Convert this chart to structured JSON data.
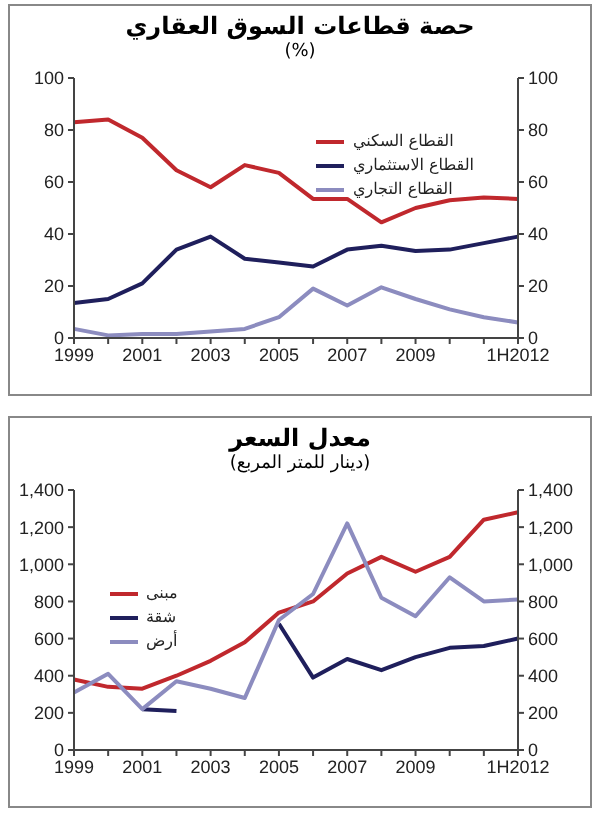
{
  "chart_data": [
    {
      "type": "line",
      "title": "حصة قطاعات السوق العقاري",
      "subtitle": "(%)",
      "categories": [
        "1999",
        null,
        "2001",
        null,
        "2003",
        null,
        "2005",
        null,
        "2007",
        null,
        "2009",
        null,
        null,
        "1H2012"
      ],
      "series": [
        {
          "name": "القطاع السكني",
          "color": "#c0282d",
          "values": [
            83,
            84,
            77,
            64.5,
            58,
            66.5,
            63.5,
            53.5,
            53.5,
            44.5,
            50,
            53,
            54,
            53.5
          ]
        },
        {
          "name": "القطاع الاستثماري",
          "color": "#1f1f5c",
          "values": [
            13.5,
            15,
            21,
            34,
            39,
            30.5,
            29,
            27.5,
            34,
            35.5,
            33.5,
            34,
            36.5,
            39
          ]
        },
        {
          "name": "القطاع التجاري",
          "color": "#8c8cbf",
          "values": [
            3.5,
            1,
            1.5,
            1.5,
            2.5,
            3.5,
            8,
            19,
            12.5,
            19.5,
            15,
            11,
            8,
            6
          ]
        }
      ],
      "ylim": [
        0,
        100
      ],
      "yticks": [
        0,
        20,
        40,
        60,
        80,
        100
      ],
      "y2lim": [
        0,
        100
      ],
      "y2ticks": [
        0,
        20,
        40,
        60,
        80,
        100
      ],
      "grid": false,
      "legend": "top right",
      "marker": "none",
      "line_style": "solid"
    },
    {
      "type": "line",
      "title": "معدل السعر",
      "subtitle": "(دينار للمتر المربع)",
      "categories": [
        "1999",
        null,
        "2001",
        null,
        "2003",
        null,
        "2005",
        null,
        "2007",
        null,
        "2009",
        null,
        null,
        "1H2012"
      ],
      "series": [
        {
          "name": "مبنى",
          "color": "#c0282d",
          "values": [
            380,
            340,
            330,
            400,
            480,
            580,
            740,
            800,
            950,
            1040,
            960,
            1040,
            1240,
            1280
          ]
        },
        {
          "name": "شقة",
          "color": "#1f1f5c",
          "values": [
            null,
            null,
            220,
            210,
            null,
            null,
            680,
            390,
            490,
            430,
            500,
            550,
            560,
            600
          ]
        },
        {
          "name": "أرض",
          "color": "#8c8cbf",
          "values": [
            310,
            410,
            220,
            370,
            330,
            280,
            700,
            840,
            1220,
            820,
            720,
            930,
            800,
            810
          ]
        }
      ],
      "ylim": [
        0,
        1400
      ],
      "yticks": [
        0,
        200,
        400,
        600,
        800,
        {
          "value": 1000,
          "label": "1,000"
        },
        {
          "value": 1200,
          "label": "1,200"
        },
        {
          "value": 1400,
          "label": "1,400"
        }
      ],
      "y2lim": [
        0,
        1400
      ],
      "y2ticks": [
        0,
        200,
        400,
        600,
        800,
        {
          "value": 1000,
          "label": "1,000"
        },
        {
          "value": 1200,
          "label": "1,200"
        },
        {
          "value": 1400,
          "label": "1,400"
        }
      ],
      "grid": false,
      "legend": "top left",
      "marker": "none",
      "line_style": "solid"
    }
  ]
}
